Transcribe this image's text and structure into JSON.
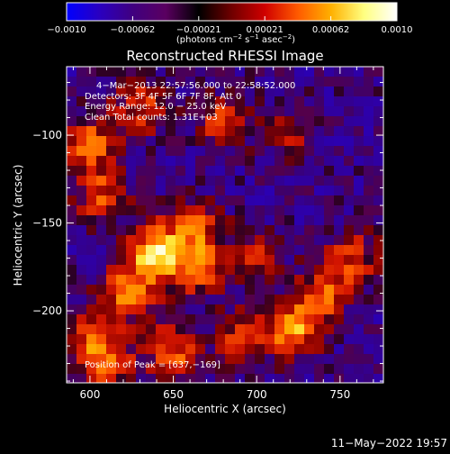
{
  "colorbar": {
    "tick_labels": [
      "−0.0010",
      "−0.00062",
      "−0.00021",
      "0.00021",
      "0.00062",
      "0.0010"
    ],
    "range": [
      -0.001,
      0.001
    ],
    "unit_parts": {
      "prefix": "(photons cm",
      "exp1": "−2",
      "mid": " s",
      "exp2": "−1",
      "mid2": " asec",
      "exp3": "−2",
      "suffix": ")"
    },
    "colors": [
      "#0000ff",
      "#2a00c0",
      "#400080",
      "#5a0060",
      "#000000",
      "#700000",
      "#d00000",
      "#ff5a00",
      "#ffb000",
      "#ffff80",
      "#ffffff"
    ]
  },
  "title": "Reconstructed RHESSI Image",
  "info": {
    "time": "4−Mar−2013 22:57:56.000 to 22:58:52.000",
    "detectors": "Detectors: 3F 4F 5F 6F 7F 8F, Att 0",
    "energy": "Energy Range: 12.0 − 25.0 keV",
    "clean": "Clean      Total counts: 1.31E+03"
  },
  "peak": "Position of Peak = [637,−169]",
  "axes": {
    "xlabel": "Heliocentric X (arcsec)",
    "ylabel": "Heliocentric Y (arcsec)",
    "xticks": [
      "600",
      "650",
      "700",
      "750"
    ],
    "yticks": [
      "−100",
      "−150",
      "−200"
    ],
    "xticks_values": [
      600,
      650,
      700,
      750
    ],
    "yticks_values": [
      -100,
      -150,
      -200
    ],
    "xlim": [
      586,
      776
    ],
    "ylim": [
      -241,
      -61
    ]
  },
  "footer_date": "11−May−2022 19:57",
  "emission_peaks": [
    {
      "x": 640,
      "y": -168,
      "value": 1.0
    },
    {
      "x": 623,
      "y": -190,
      "value": 0.6
    },
    {
      "x": 663,
      "y": -152,
      "value": 0.5
    },
    {
      "x": 665,
      "y": -175,
      "value": 0.55
    },
    {
      "x": 607,
      "y": -135,
      "value": 0.5
    },
    {
      "x": 600,
      "y": -105,
      "value": 0.6
    },
    {
      "x": 630,
      "y": -85,
      "value": 0.45
    },
    {
      "x": 680,
      "y": -92,
      "value": 0.45
    },
    {
      "x": 722,
      "y": -210,
      "value": 0.75
    },
    {
      "x": 740,
      "y": -190,
      "value": 0.5
    },
    {
      "x": 690,
      "y": -215,
      "value": 0.4
    },
    {
      "x": 600,
      "y": -215,
      "value": 0.5
    },
    {
      "x": 650,
      "y": -223,
      "value": 0.55
    },
    {
      "x": 700,
      "y": -170,
      "value": 0.4
    },
    {
      "x": 758,
      "y": -170,
      "value": 0.45
    },
    {
      "x": 720,
      "y": -98,
      "value": 0.3
    },
    {
      "x": 612,
      "y": -230,
      "value": 0.5
    }
  ]
}
